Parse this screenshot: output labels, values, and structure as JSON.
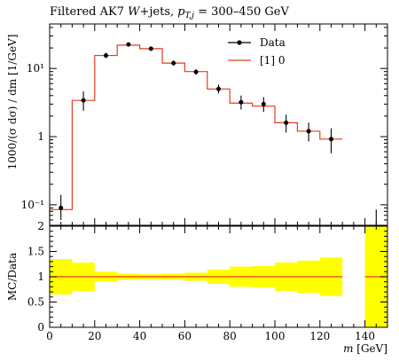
{
  "chart_data": {
    "type": "line",
    "title_parts": [
      "Filtered AK7 ",
      "W",
      "+jets, ",
      "p",
      "T,j",
      " = 300–450 GeV"
    ],
    "top_panel": {
      "ylabel": "1000/(σ dσ) / dm [1/GeV]",
      "yscale": "log",
      "ylim": [
        0.05,
        45
      ],
      "ytick_labels": [
        "10⁻¹",
        "1",
        "10¹"
      ],
      "ytick_values": [
        0.1,
        1,
        10
      ],
      "legend": {
        "position": "top-right",
        "data_label": "Data",
        "mc_label": "[1] 0"
      },
      "data": {
        "name": "Data",
        "x": [
          5,
          15,
          25,
          35,
          45,
          55,
          65,
          75,
          85,
          95,
          105,
          115,
          125
        ],
        "y": [
          0.09,
          3.4,
          15.5,
          22.5,
          19.5,
          12.0,
          8.9,
          5.0,
          3.2,
          3.0,
          1.6,
          1.2,
          0.92
        ],
        "yerr_low": [
          0.03,
          1.0,
          1.3,
          1.2,
          1.3,
          1.0,
          0.8,
          0.7,
          0.7,
          0.7,
          0.45,
          0.35,
          0.35
        ],
        "yerr_high": [
          0.05,
          1.2,
          1.5,
          1.4,
          1.4,
          1.1,
          0.9,
          0.8,
          0.8,
          0.8,
          0.5,
          0.4,
          0.4
        ]
      },
      "mc": {
        "name": "[1] 0",
        "bin_edges": [
          0,
          10,
          20,
          30,
          40,
          50,
          60,
          70,
          80,
          90,
          100,
          110,
          120,
          130
        ],
        "values": [
          0.085,
          3.4,
          15.5,
          22.0,
          19.5,
          12.0,
          9.0,
          5.0,
          3.1,
          2.8,
          1.6,
          1.2,
          0.92
        ]
      },
      "extra_point": {
        "x": 145,
        "y_low": 0.04,
        "y_high": 0.085
      }
    },
    "ratio_panel": {
      "ylabel": "MC/Data",
      "ylim": [
        0,
        2
      ],
      "ytick_labels": [
        "0",
        "0.5",
        "1",
        "1.5",
        "2"
      ],
      "ytick_values": [
        0,
        0.5,
        1,
        1.5,
        2
      ],
      "band_bin_edges": [
        0,
        10,
        20,
        30,
        40,
        50,
        60,
        70,
        80,
        90,
        100,
        110,
        120,
        130
      ],
      "band_low": [
        0.65,
        0.72,
        0.9,
        0.94,
        0.95,
        0.94,
        0.92,
        0.86,
        0.8,
        0.79,
        0.72,
        0.68,
        0.62
      ],
      "band_high": [
        1.35,
        1.28,
        1.1,
        1.06,
        1.05,
        1.06,
        1.08,
        1.14,
        1.2,
        1.21,
        1.28,
        1.32,
        1.38
      ],
      "extra_band": {
        "x_start": 140,
        "x_end": 150,
        "low": 0,
        "high": 2
      },
      "ratio_line": 1.0
    },
    "xaxis": {
      "label_var": "m",
      "label_unit": " [GeV]",
      "xlim": [
        0,
        150
      ],
      "tick_labels": [
        "0",
        "20",
        "40",
        "60",
        "80",
        "100",
        "120",
        "140"
      ],
      "tick_values": [
        0,
        20,
        40,
        60,
        80,
        100,
        120,
        140
      ]
    },
    "colors": {
      "mc": "#e63b1f",
      "band": "#ffff00",
      "data": "#000000"
    }
  }
}
